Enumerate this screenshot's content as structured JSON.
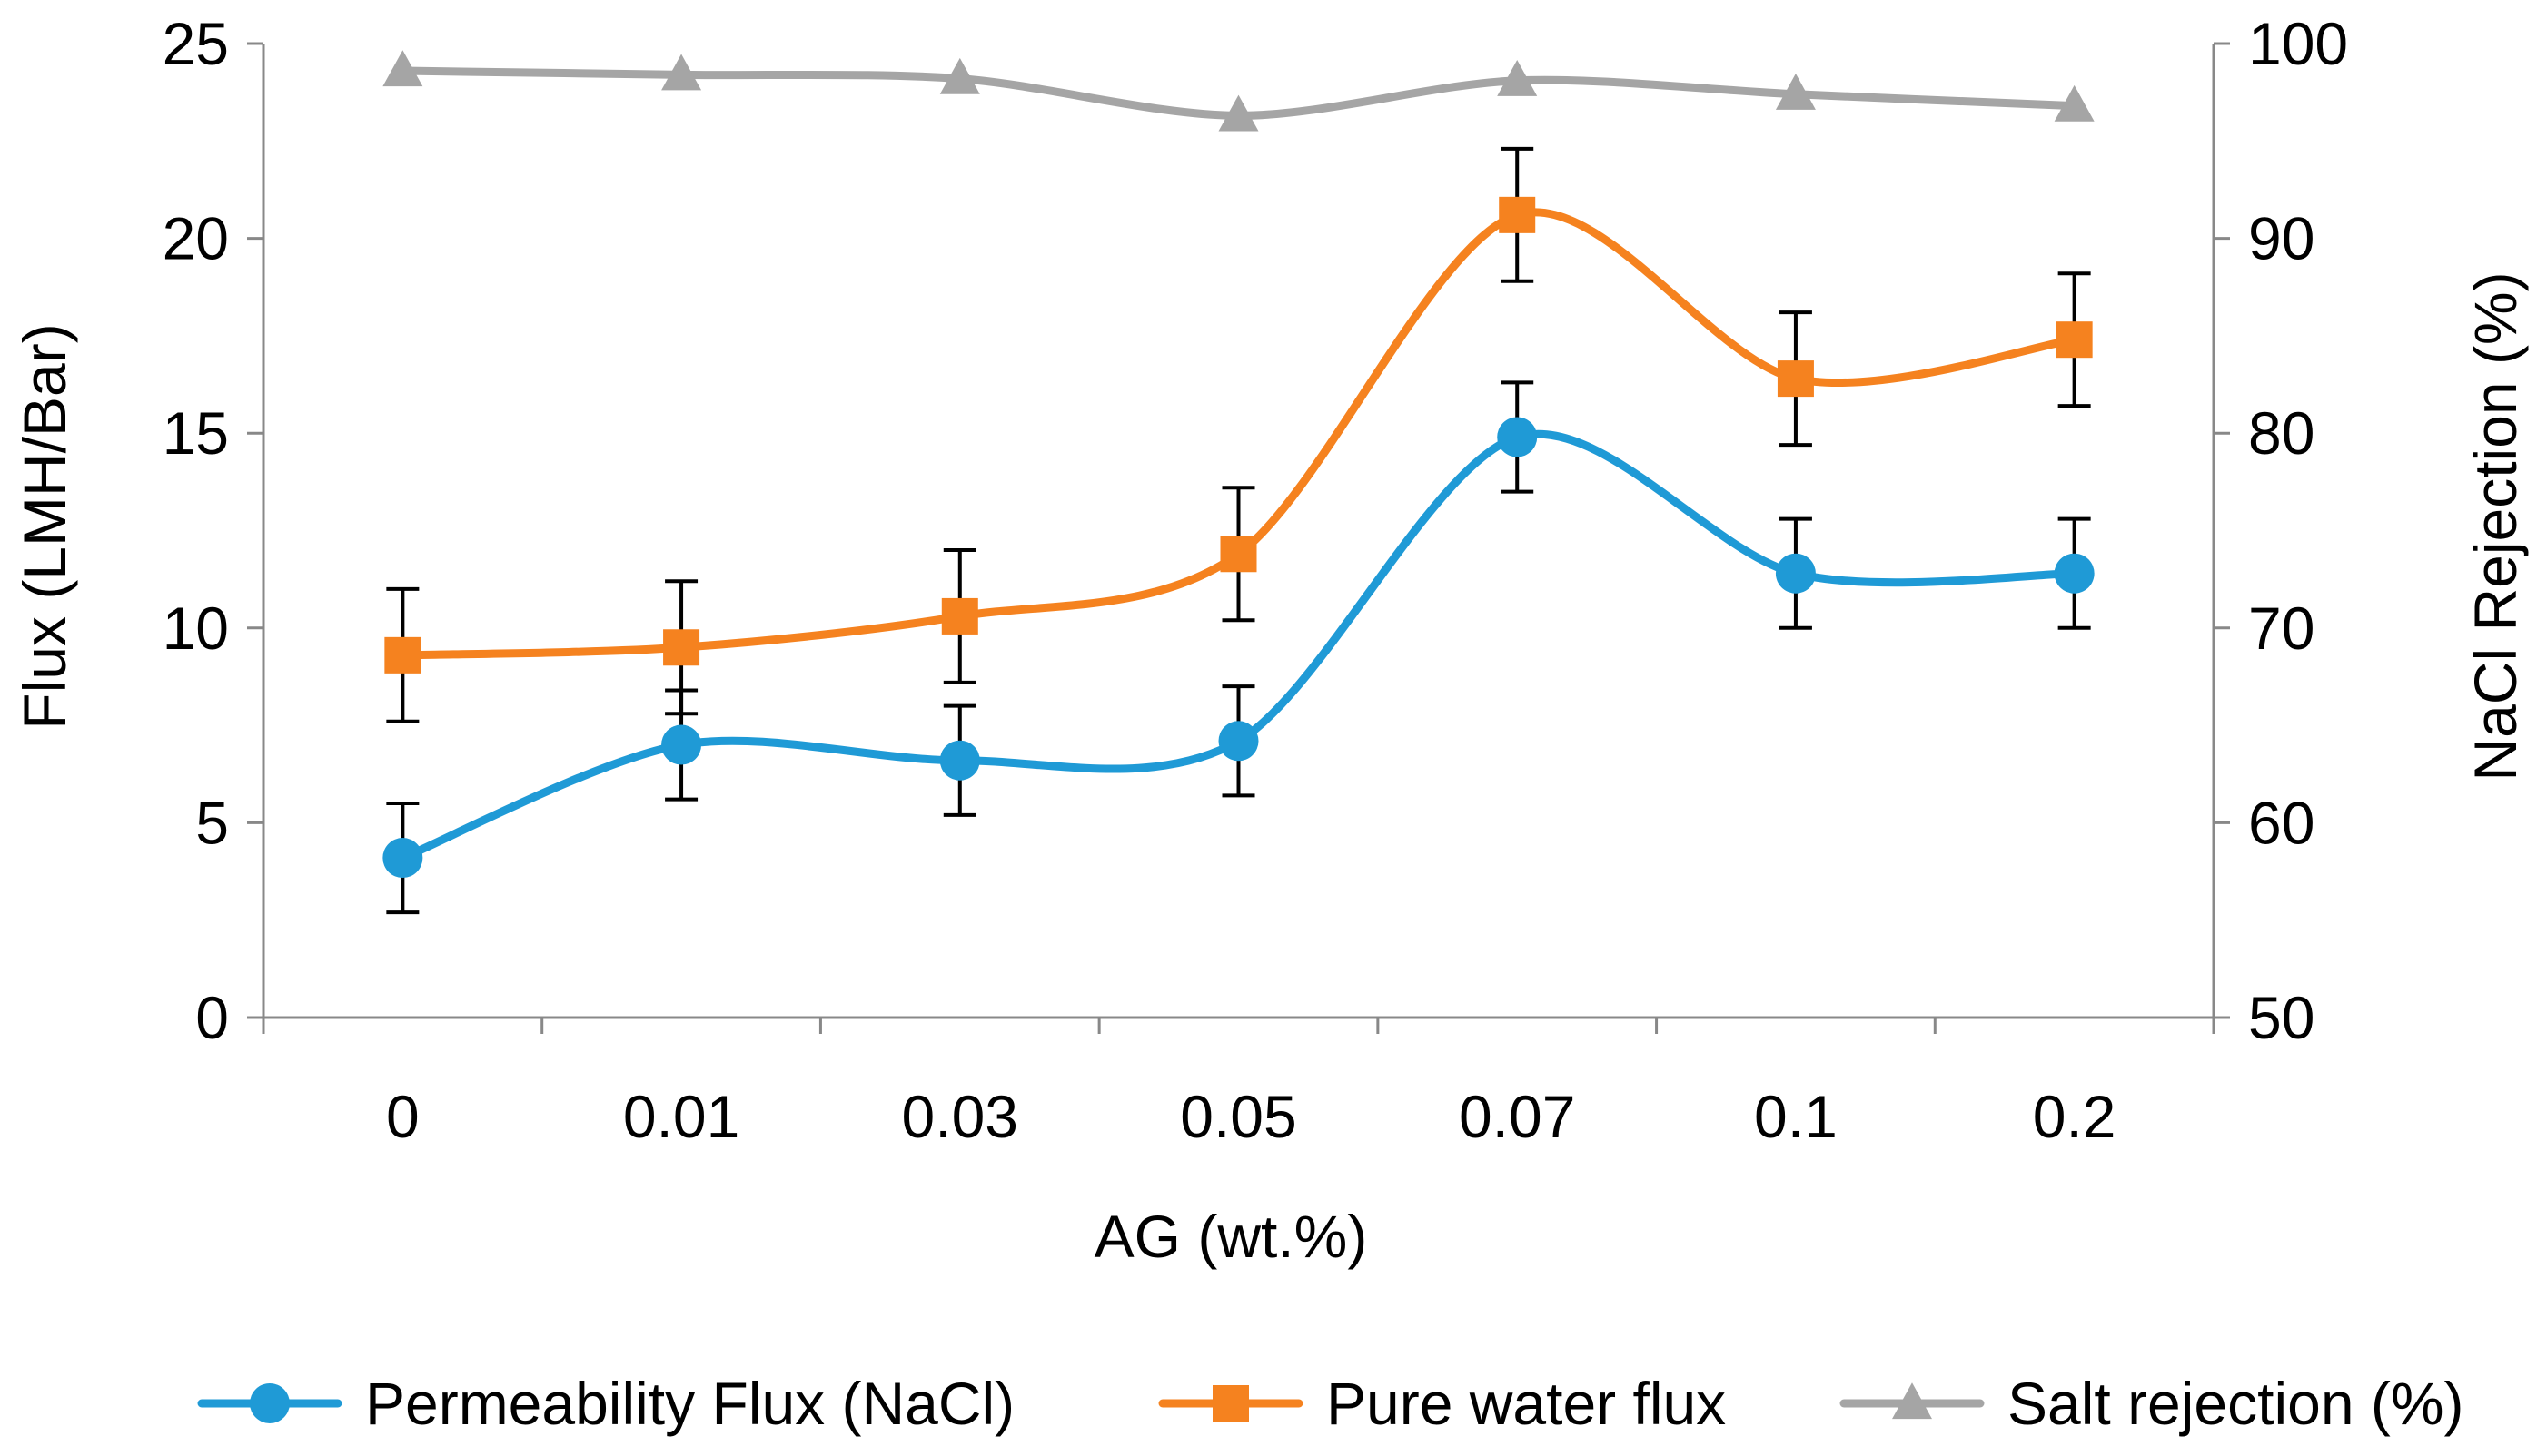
{
  "chart_data": {
    "type": "line",
    "title": "",
    "categories": [
      "0",
      "0.01",
      "0.03",
      "0.05",
      "0.07",
      "0.1",
      "0.2"
    ],
    "xlabel": "AG (wt.%)",
    "ylabel": "Flux (LMH/Bar)",
    "y2label": "NaCl Rejection (%)",
    "ylim": [
      0,
      25
    ],
    "yticks": [
      "0",
      "5",
      "10",
      "15",
      "20",
      "25"
    ],
    "y2lim": [
      50,
      100
    ],
    "y2ticks": [
      "50",
      "60",
      "70",
      "80",
      "90",
      "100"
    ],
    "grid": false,
    "legend_position": "bottom",
    "series": [
      {
        "name": "Permeability Flux (NaCl)",
        "axis": "left",
        "marker": "circle",
        "color": "#1f9ad6",
        "values": [
          4.1,
          7.0,
          6.6,
          7.1,
          14.9,
          11.4,
          11.4
        ],
        "errors": [
          1.4,
          1.4,
          1.4,
          1.4,
          1.4,
          1.4,
          1.4
        ]
      },
      {
        "name": "Pure water flux",
        "axis": "left",
        "marker": "square",
        "color": "#f5821f",
        "values": [
          9.3,
          9.5,
          10.3,
          11.9,
          20.6,
          16.4,
          17.4
        ],
        "errors": [
          1.7,
          1.7,
          1.7,
          1.7,
          1.7,
          1.7,
          1.7
        ]
      },
      {
        "name": "Salt rejection (%)",
        "axis": "right",
        "marker": "triangle",
        "color": "#a5a5a5",
        "values": [
          98.6,
          98.4,
          98.2,
          96.3,
          98.1,
          97.4,
          96.8
        ]
      }
    ]
  }
}
